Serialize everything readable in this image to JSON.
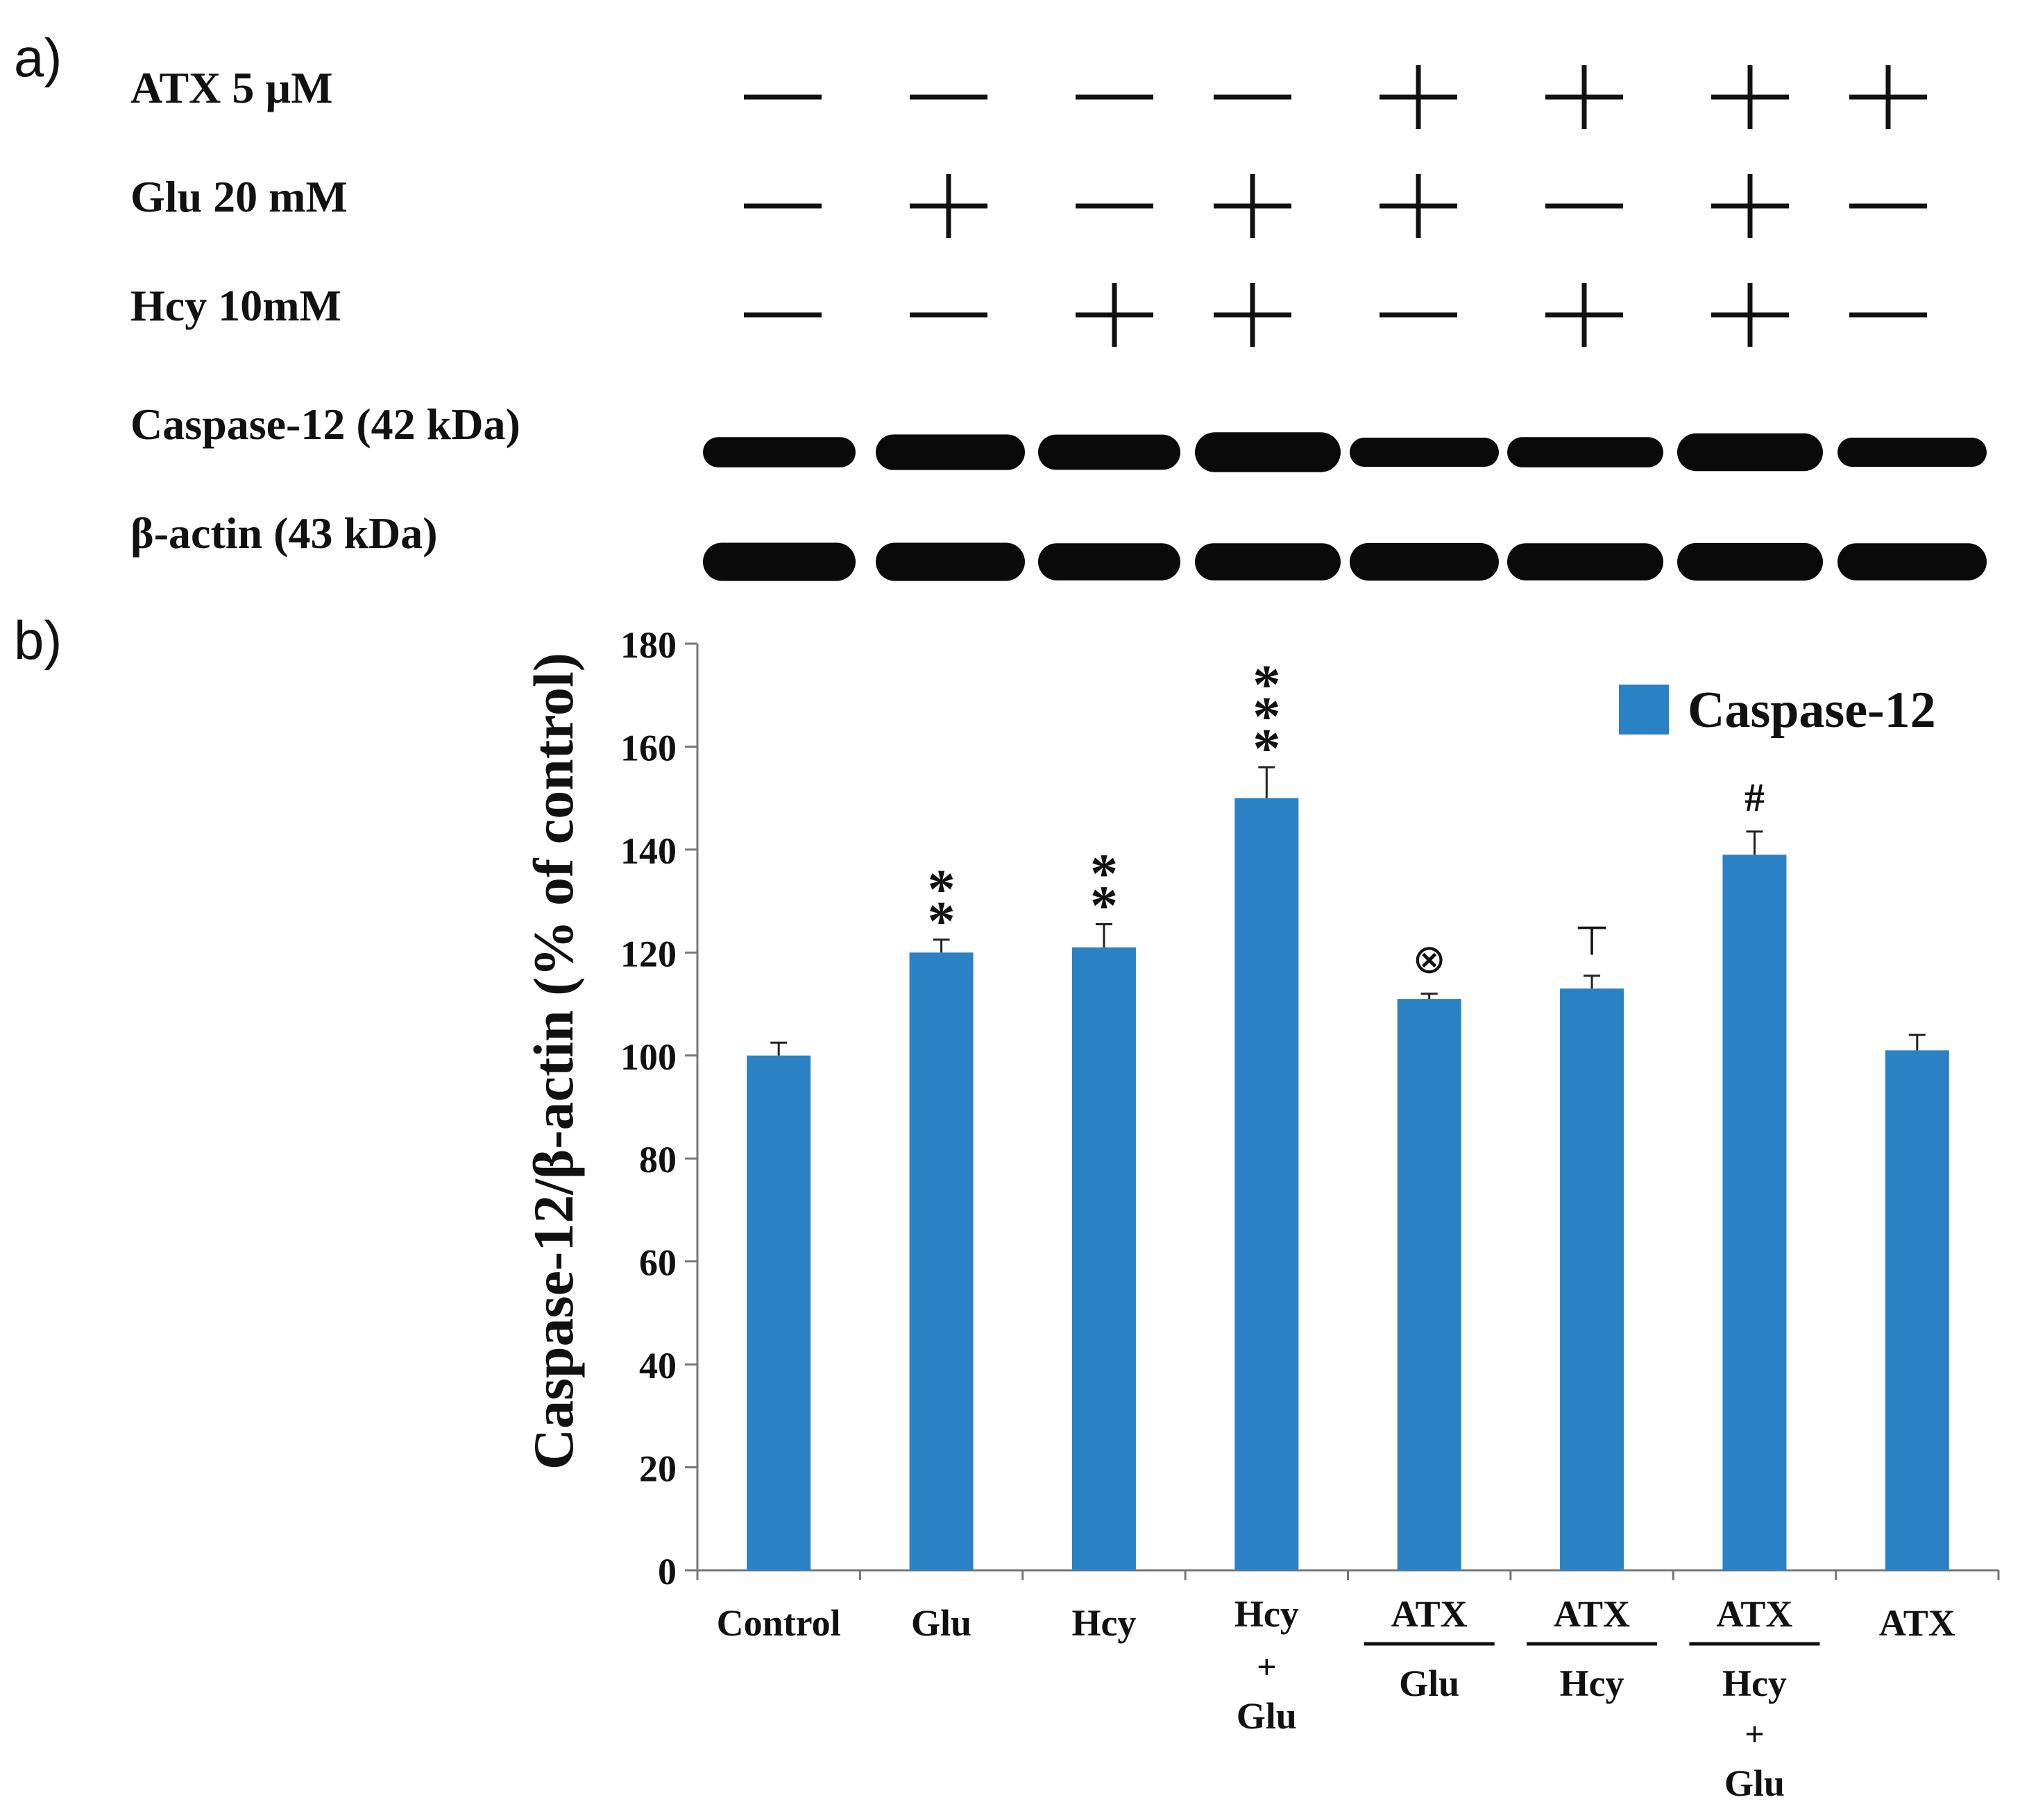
{
  "panel_a": {
    "panel_label": "a)",
    "row_labels": [
      "ATX 5 µM",
      "Glu 20 mM",
      "Hcy 10mM"
    ],
    "treatment_matrix": [
      [
        "—",
        "—",
        "—",
        "—",
        "+",
        "+",
        "+",
        "+"
      ],
      [
        "—",
        "+",
        "—",
        "+",
        "+",
        "—",
        "+",
        "—"
      ],
      [
        "—",
        "—",
        "+",
        "+",
        "—",
        "+",
        "+",
        "—"
      ]
    ],
    "blot_labels": [
      "Caspase-12 (42 kDa)",
      "β-actin (43 kDa)"
    ],
    "caspase_band_intensity": [
      0.55,
      0.8,
      0.78,
      1.0,
      0.5,
      0.55,
      0.9,
      0.5
    ],
    "actin_band_intensity": [
      0.85,
      0.85,
      0.8,
      0.8,
      0.82,
      0.8,
      0.82,
      0.8
    ]
  },
  "panel_b": {
    "panel_label": "b)"
  },
  "chart_data": {
    "type": "bar",
    "title": "",
    "xlabel": "",
    "ylabel": "Caspase-12/β-actin (% of control)",
    "ylim": [
      0,
      180
    ],
    "yticks": [
      0,
      20,
      40,
      60,
      80,
      100,
      120,
      140,
      160,
      180
    ],
    "grid": false,
    "legend": {
      "position": "top-right",
      "entries": [
        "Caspase-12"
      ]
    },
    "bar_color": "#2a82c4",
    "categories": [
      {
        "top": "Control",
        "bottom": []
      },
      {
        "top": "Glu",
        "bottom": []
      },
      {
        "top": "Hcy",
        "bottom": []
      },
      {
        "top": "Hcy",
        "bottom": [
          "+",
          "Glu"
        ]
      },
      {
        "top": "ATX",
        "bottom": [
          "Glu"
        ]
      },
      {
        "top": "ATX",
        "bottom": [
          "Hcy"
        ]
      },
      {
        "top": "ATX",
        "bottom": [
          "Hcy",
          "+",
          "Glu"
        ]
      },
      {
        "top": "ATX",
        "bottom": []
      }
    ],
    "series": [
      {
        "name": "Caspase-12",
        "values": [
          100,
          120,
          121,
          150,
          111,
          113,
          139,
          101
        ],
        "errors": [
          2.5,
          2.5,
          4.5,
          6,
          1,
          2.5,
          4.5,
          3
        ]
      }
    ],
    "annotations": [
      "",
      "**",
      "**",
      "***",
      "⊗",
      "⊤",
      "#",
      ""
    ]
  }
}
